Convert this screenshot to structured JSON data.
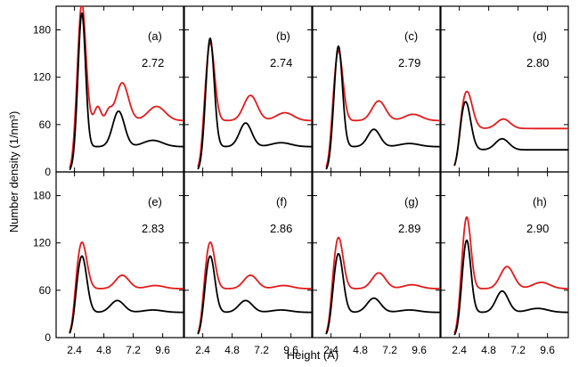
{
  "chart_data": {
    "type": "line",
    "xlabel": "Height (Å)",
    "ylabel": "Number density (1/nm³)",
    "xlim": [
      0.9,
      11.3
    ],
    "ylim": [
      0,
      210
    ],
    "xticks": [
      "2.4",
      "4.8",
      "7.2",
      "9.6"
    ],
    "yticks": [
      "0",
      "60",
      "120",
      "180"
    ],
    "colors": {
      "upper": "#e41a1c",
      "lower": "#000000"
    },
    "grid": false,
    "legend": "none",
    "panels": [
      {
        "label": "(a)",
        "value": "2.72",
        "series": [
          {
            "color": "#e41a1c",
            "base": 65,
            "peaks": [
              [
                3.0,
                150,
                0.32
              ],
              [
                4.3,
                18,
                0.25
              ],
              [
                5.2,
                12,
                0.25
              ],
              [
                6.3,
                48,
                0.5
              ],
              [
                9.1,
                18,
                0.7
              ]
            ]
          },
          {
            "color": "#000000",
            "base": 32,
            "peaks": [
              [
                3.0,
                170,
                0.3
              ],
              [
                6.0,
                45,
                0.48
              ],
              [
                8.8,
                8,
                0.8
              ]
            ]
          }
        ]
      },
      {
        "label": "(b)",
        "value": "2.74",
        "series": [
          {
            "color": "#e41a1c",
            "base": 65,
            "peaks": [
              [
                3.0,
                100,
                0.36
              ],
              [
                6.3,
                32,
                0.55
              ],
              [
                9.1,
                10,
                0.7
              ]
            ]
          },
          {
            "color": "#000000",
            "base": 32,
            "peaks": [
              [
                3.0,
                138,
                0.33
              ],
              [
                5.9,
                30,
                0.5
              ],
              [
                8.8,
                5,
                0.8
              ]
            ]
          }
        ]
      },
      {
        "label": "(c)",
        "value": "2.79",
        "series": [
          {
            "color": "#e41a1c",
            "base": 65,
            "peaks": [
              [
                3.0,
                90,
                0.36
              ],
              [
                6.3,
                25,
                0.55
              ],
              [
                9.1,
                8,
                0.7
              ]
            ]
          },
          {
            "color": "#000000",
            "base": 32,
            "peaks": [
              [
                3.0,
                128,
                0.33
              ],
              [
                5.9,
                22,
                0.5
              ],
              [
                8.8,
                4,
                0.8
              ]
            ]
          }
        ]
      },
      {
        "label": "(d)",
        "value": "2.80",
        "series": [
          {
            "color": "#e41a1c",
            "base": 55,
            "peaks": [
              [
                3.0,
                48,
                0.45
              ],
              [
                6.0,
                12,
                0.55
              ]
            ]
          },
          {
            "color": "#000000",
            "base": 28,
            "peaks": [
              [
                2.9,
                62,
                0.42
              ],
              [
                5.9,
                14,
                0.55
              ]
            ]
          }
        ]
      },
      {
        "label": "(e)",
        "value": "2.83",
        "series": [
          {
            "color": "#e41a1c",
            "base": 62,
            "peaks": [
              [
                3.0,
                60,
                0.4
              ],
              [
                6.3,
                17,
                0.55
              ],
              [
                9.0,
                4,
                0.7
              ]
            ]
          },
          {
            "color": "#000000",
            "base": 32,
            "peaks": [
              [
                3.0,
                72,
                0.4
              ],
              [
                5.9,
                15,
                0.55
              ],
              [
                8.8,
                3,
                0.8
              ]
            ]
          }
        ]
      },
      {
        "label": "(f)",
        "value": "2.86",
        "series": [
          {
            "color": "#e41a1c",
            "base": 62,
            "peaks": [
              [
                3.0,
                60,
                0.38
              ],
              [
                6.3,
                17,
                0.55
              ],
              [
                9.0,
                4,
                0.7
              ]
            ]
          },
          {
            "color": "#000000",
            "base": 32,
            "peaks": [
              [
                3.0,
                72,
                0.38
              ],
              [
                5.9,
                15,
                0.55
              ],
              [
                8.8,
                3,
                0.8
              ]
            ]
          }
        ]
      },
      {
        "label": "(g)",
        "value": "2.89",
        "series": [
          {
            "color": "#e41a1c",
            "base": 62,
            "peaks": [
              [
                3.0,
                66,
                0.38
              ],
              [
                6.3,
                20,
                0.55
              ],
              [
                9.0,
                5,
                0.7
              ]
            ]
          },
          {
            "color": "#000000",
            "base": 32,
            "peaks": [
              [
                3.0,
                75,
                0.38
              ],
              [
                5.9,
                18,
                0.55
              ],
              [
                8.8,
                3,
                0.8
              ]
            ]
          }
        ]
      },
      {
        "label": "(h)",
        "value": "2.90",
        "series": [
          {
            "color": "#e41a1c",
            "base": 62,
            "peaks": [
              [
                3.0,
                92,
                0.34
              ],
              [
                6.3,
                28,
                0.55
              ],
              [
                9.1,
                8,
                0.7
              ]
            ]
          },
          {
            "color": "#000000",
            "base": 32,
            "peaks": [
              [
                3.0,
                92,
                0.34
              ],
              [
                5.9,
                27,
                0.5
              ],
              [
                8.8,
                5,
                0.8
              ]
            ]
          }
        ]
      }
    ]
  }
}
